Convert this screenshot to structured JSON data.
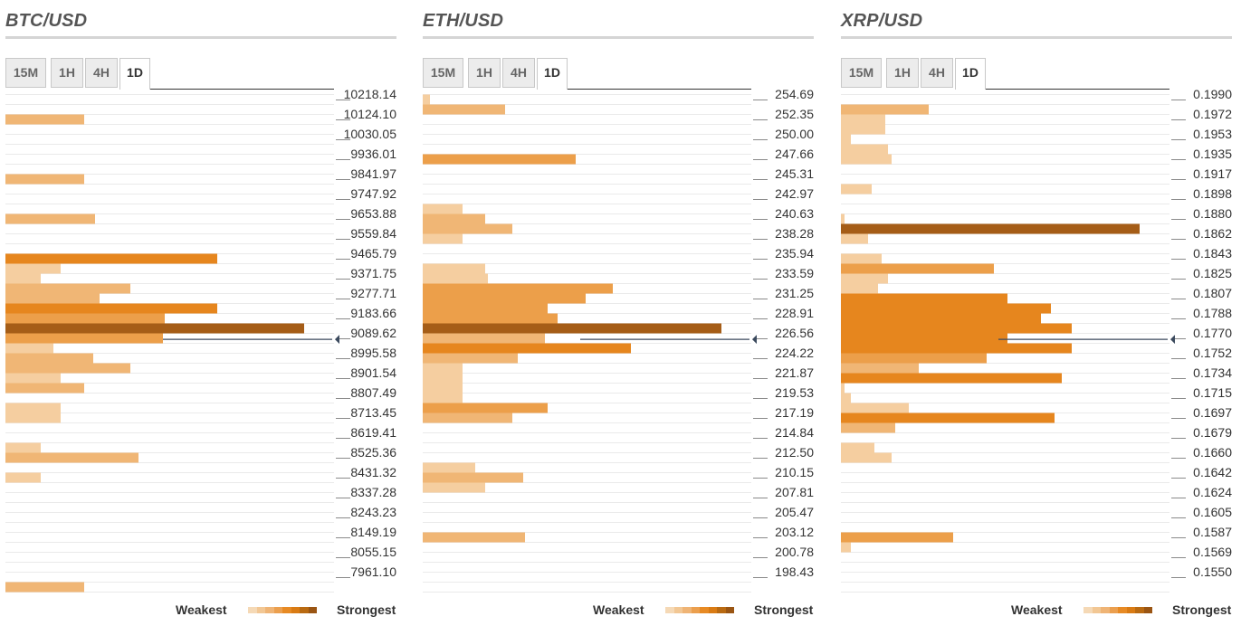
{
  "legend": {
    "weakest": "Weakest",
    "strongest": "Strongest",
    "colors": [
      "#f5d9b6",
      "#f2c794",
      "#efb475",
      "#eb9f4e",
      "#e78a24",
      "#d97b14",
      "#b96a12",
      "#9a5513"
    ]
  },
  "colors": {
    "c1": "#f5cea0",
    "c2": "#f0b675",
    "c3": "#ec9f4a",
    "c4": "#e6861e",
    "c5": "#a55d17",
    "rule": "#eaeaea",
    "marker": "#3b4a5e"
  },
  "panels": [
    {
      "title": "BTC/USD",
      "tabs": [
        "15M",
        "1H",
        "4H",
        "1D"
      ],
      "active_tab": "1D",
      "labels": [
        "10218.14",
        "10124.10",
        "10030.05",
        "9936.01",
        "9841.97",
        "9747.92",
        "9653.88",
        "9559.84",
        "9465.79",
        "9371.75",
        "9277.71",
        "9183.66",
        "9089.62",
        "8995.58",
        "8901.54",
        "8807.49",
        "8713.45",
        "8619.41",
        "8525.36",
        "8431.32",
        "8337.28",
        "8243.23",
        "8149.19",
        "8055.15",
        "7961.10"
      ],
      "current_price_index": 12.3,
      "bars": [
        {
          "pos": 1,
          "value": 87,
          "level": 2
        },
        {
          "pos": 4,
          "value": 87,
          "level": 2
        },
        {
          "pos": 6,
          "value": 99,
          "level": 2
        },
        {
          "pos": 8,
          "value": 234,
          "level": 4
        },
        {
          "pos": 8.5,
          "value": 61,
          "level": 1
        },
        {
          "pos": 9,
          "value": 39,
          "level": 1
        },
        {
          "pos": 9.5,
          "value": 138,
          "level": 2
        },
        {
          "pos": 10,
          "value": 104,
          "level": 2
        },
        {
          "pos": 10.5,
          "value": 234,
          "level": 4
        },
        {
          "pos": 11,
          "value": 176,
          "level": 3
        },
        {
          "pos": 11.5,
          "value": 330,
          "level": 5
        },
        {
          "pos": 12,
          "value": 174,
          "level": 3
        },
        {
          "pos": 12.5,
          "value": 53,
          "level": 1
        },
        {
          "pos": 13,
          "value": 97,
          "level": 2
        },
        {
          "pos": 13.5,
          "value": 138,
          "level": 2
        },
        {
          "pos": 14,
          "value": 61,
          "level": 1
        },
        {
          "pos": 14.5,
          "value": 87,
          "level": 2
        },
        {
          "pos": 15.5,
          "value": 61,
          "level": 1
        },
        {
          "pos": 16,
          "value": 61,
          "level": 1
        },
        {
          "pos": 17.5,
          "value": 39,
          "level": 1
        },
        {
          "pos": 18,
          "value": 147,
          "level": 2
        },
        {
          "pos": 19,
          "value": 39,
          "level": 1
        },
        {
          "pos": 24.5,
          "value": 87,
          "level": 2
        }
      ]
    },
    {
      "title": "ETH/USD",
      "tabs": [
        "15M",
        "1H",
        "4H",
        "1D"
      ],
      "active_tab": "1D",
      "labels": [
        "254.69",
        "252.35",
        "250.00",
        "247.66",
        "245.31",
        "242.97",
        "240.63",
        "238.28",
        "235.94",
        "233.59",
        "231.25",
        "228.91",
        "226.56",
        "224.22",
        "221.87",
        "219.53",
        "217.19",
        "214.84",
        "212.50",
        "210.15",
        "207.81",
        "205.47",
        "203.12",
        "200.78",
        "198.43"
      ],
      "current_price_index": 12.3,
      "bars": [
        {
          "pos": 0,
          "value": 8,
          "level": 1
        },
        {
          "pos": 0.5,
          "value": 91,
          "level": 2
        },
        {
          "pos": 3,
          "value": 169,
          "level": 3
        },
        {
          "pos": 5.5,
          "value": 44,
          "level": 1
        },
        {
          "pos": 6,
          "value": 69,
          "level": 2
        },
        {
          "pos": 6.5,
          "value": 99,
          "level": 2
        },
        {
          "pos": 7,
          "value": 44,
          "level": 1
        },
        {
          "pos": 8.5,
          "value": 69,
          "level": 1
        },
        {
          "pos": 9,
          "value": 72,
          "level": 1
        },
        {
          "pos": 9.5,
          "value": 210,
          "level": 3
        },
        {
          "pos": 10,
          "value": 180,
          "level": 3
        },
        {
          "pos": 10.5,
          "value": 138,
          "level": 3
        },
        {
          "pos": 11,
          "value": 149,
          "level": 3
        },
        {
          "pos": 11.5,
          "value": 330,
          "level": 5
        },
        {
          "pos": 12,
          "value": 135,
          "level": 2
        },
        {
          "pos": 12.5,
          "value": 230,
          "level": 4
        },
        {
          "pos": 13,
          "value": 105,
          "level": 2
        },
        {
          "pos": 13.5,
          "value": 44,
          "level": 1
        },
        {
          "pos": 14,
          "value": 44,
          "level": 1
        },
        {
          "pos": 14.5,
          "value": 44,
          "level": 1
        },
        {
          "pos": 15,
          "value": 44,
          "level": 1
        },
        {
          "pos": 15.5,
          "value": 138,
          "level": 3
        },
        {
          "pos": 16,
          "value": 99,
          "level": 2
        },
        {
          "pos": 18.5,
          "value": 58,
          "level": 1
        },
        {
          "pos": 19,
          "value": 111,
          "level": 2
        },
        {
          "pos": 19.5,
          "value": 69,
          "level": 1
        },
        {
          "pos": 22,
          "value": 113,
          "level": 2
        }
      ]
    },
    {
      "title": "XRP/USD",
      "tabs": [
        "15M",
        "1H",
        "4H",
        "1D"
      ],
      "active_tab": "1D",
      "labels": [
        "0.1990",
        "0.1972",
        "0.1953",
        "0.1935",
        "0.1917",
        "0.1898",
        "0.1880",
        "0.1862",
        "0.1843",
        "0.1825",
        "0.1807",
        "0.1788",
        "0.1770",
        "0.1752",
        "0.1734",
        "0.1715",
        "0.1697",
        "0.1679",
        "0.1660",
        "0.1642",
        "0.1624",
        "0.1605",
        "0.1587",
        "0.1569",
        "0.1550"
      ],
      "current_price_index": 12.3,
      "bars": [
        {
          "pos": 0.5,
          "value": 97,
          "level": 2
        },
        {
          "pos": 1,
          "value": 49,
          "level": 1
        },
        {
          "pos": 1.5,
          "value": 49,
          "level": 1
        },
        {
          "pos": 2,
          "value": 11,
          "level": 1
        },
        {
          "pos": 2.5,
          "value": 52,
          "level": 1
        },
        {
          "pos": 3,
          "value": 56,
          "level": 1
        },
        {
          "pos": 4.5,
          "value": 34,
          "level": 1
        },
        {
          "pos": 6,
          "value": 4,
          "level": 1
        },
        {
          "pos": 6.5,
          "value": 330,
          "level": 5
        },
        {
          "pos": 7,
          "value": 30,
          "level": 1
        },
        {
          "pos": 8,
          "value": 45,
          "level": 1
        },
        {
          "pos": 8.5,
          "value": 169,
          "level": 3
        },
        {
          "pos": 9,
          "value": 52,
          "level": 1
        },
        {
          "pos": 9.5,
          "value": 41,
          "level": 1
        },
        {
          "pos": 10,
          "value": 184,
          "level": 4
        },
        {
          "pos": 10.5,
          "value": 232,
          "level": 4
        },
        {
          "pos": 11,
          "value": 221,
          "level": 4
        },
        {
          "pos": 11.5,
          "value": 255,
          "level": 4
        },
        {
          "pos": 12,
          "value": 184,
          "level": 4
        },
        {
          "pos": 12.5,
          "value": 255,
          "level": 4
        },
        {
          "pos": 13,
          "value": 161,
          "level": 3
        },
        {
          "pos": 13.5,
          "value": 86,
          "level": 2
        },
        {
          "pos": 14,
          "value": 244,
          "level": 4
        },
        {
          "pos": 14.5,
          "value": 4,
          "level": 1
        },
        {
          "pos": 15,
          "value": 11,
          "level": 1
        },
        {
          "pos": 15.5,
          "value": 75,
          "level": 1
        },
        {
          "pos": 16,
          "value": 236,
          "level": 4
        },
        {
          "pos": 16.5,
          "value": 60,
          "level": 2
        },
        {
          "pos": 17.5,
          "value": 37,
          "level": 1
        },
        {
          "pos": 18,
          "value": 56,
          "level": 1
        },
        {
          "pos": 22,
          "value": 124,
          "level": 3
        },
        {
          "pos": 22.5,
          "value": 11,
          "level": 1
        }
      ]
    }
  ]
}
